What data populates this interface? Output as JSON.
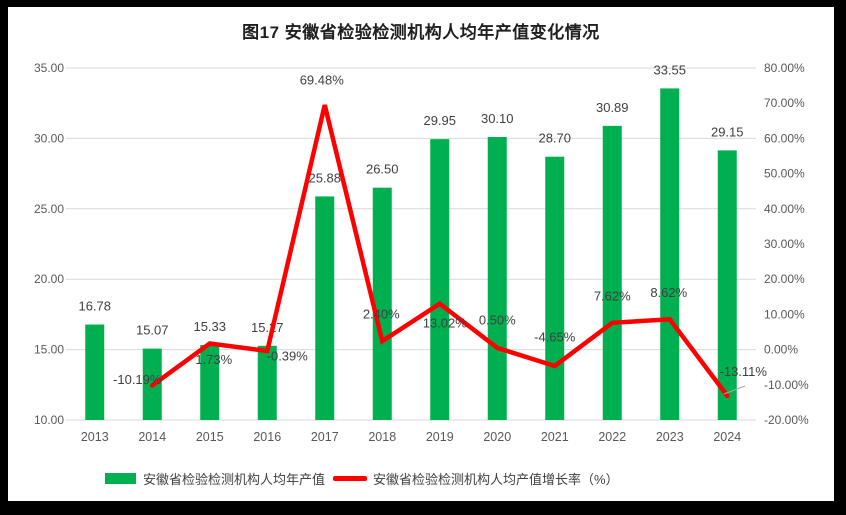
{
  "title": "图17 安徽省检验检测机构人均年产值变化情况",
  "chart_data": {
    "type": "combo bar+line",
    "categories": [
      "2013",
      "2014",
      "2015",
      "2016",
      "2017",
      "2018",
      "2019",
      "2020",
      "2021",
      "2022",
      "2023",
      "2024"
    ],
    "series": [
      {
        "name": "安徽省检验检测机构人均年产值",
        "type": "bar",
        "axis": "left",
        "color": "#00B050",
        "values": [
          16.78,
          15.07,
          15.33,
          15.27,
          25.88,
          26.5,
          29.95,
          30.1,
          28.7,
          30.89,
          33.55,
          29.15
        ],
        "labels": [
          "16.78",
          "15.07",
          "15.33",
          "15.27",
          "25.88",
          "26.50",
          "29.95",
          "30.10",
          "28.70",
          "30.89",
          "33.55",
          "29.15"
        ]
      },
      {
        "name": "安徽省检验检测机构人均产值增长率（%）",
        "type": "line",
        "axis": "right",
        "color": "#FF0000",
        "values": [
          null,
          -10.19,
          1.73,
          -0.39,
          69.48,
          2.4,
          13.02,
          0.5,
          -4.65,
          7.62,
          8.62,
          -13.11
        ],
        "labels": [
          "",
          "-10.19%",
          "1.73%",
          "-0.39%",
          "69.48%",
          "2.40%",
          "13.02%",
          "0.50%",
          "-4.65%",
          "7.62%",
          "8.62%",
          "-13.11%"
        ]
      }
    ],
    "left_axis": {
      "min": 10,
      "max": 35,
      "step": 5,
      "tick_labels": [
        "10.00",
        "15.00",
        "20.00",
        "25.00",
        "30.00",
        "35.00"
      ]
    },
    "right_axis": {
      "min": -20,
      "max": 80,
      "step": 10,
      "tick_labels": [
        "-20.00%",
        "-10.00%",
        "0.00%",
        "10.00%",
        "20.00%",
        "30.00%",
        "40.00%",
        "50.00%",
        "60.00%",
        "70.00%",
        "80.00%"
      ]
    },
    "grid": true,
    "legend_position": "bottom"
  },
  "colors": {
    "bar": "#00B050",
    "line": "#FF0000",
    "grid": "#D9D9D9",
    "axis_text": "#595959",
    "label_text": "#404040",
    "title_text": "#1F1F1F",
    "leader": "#A6A6A6",
    "frame": "#000000",
    "background": "#FFFFFF"
  }
}
